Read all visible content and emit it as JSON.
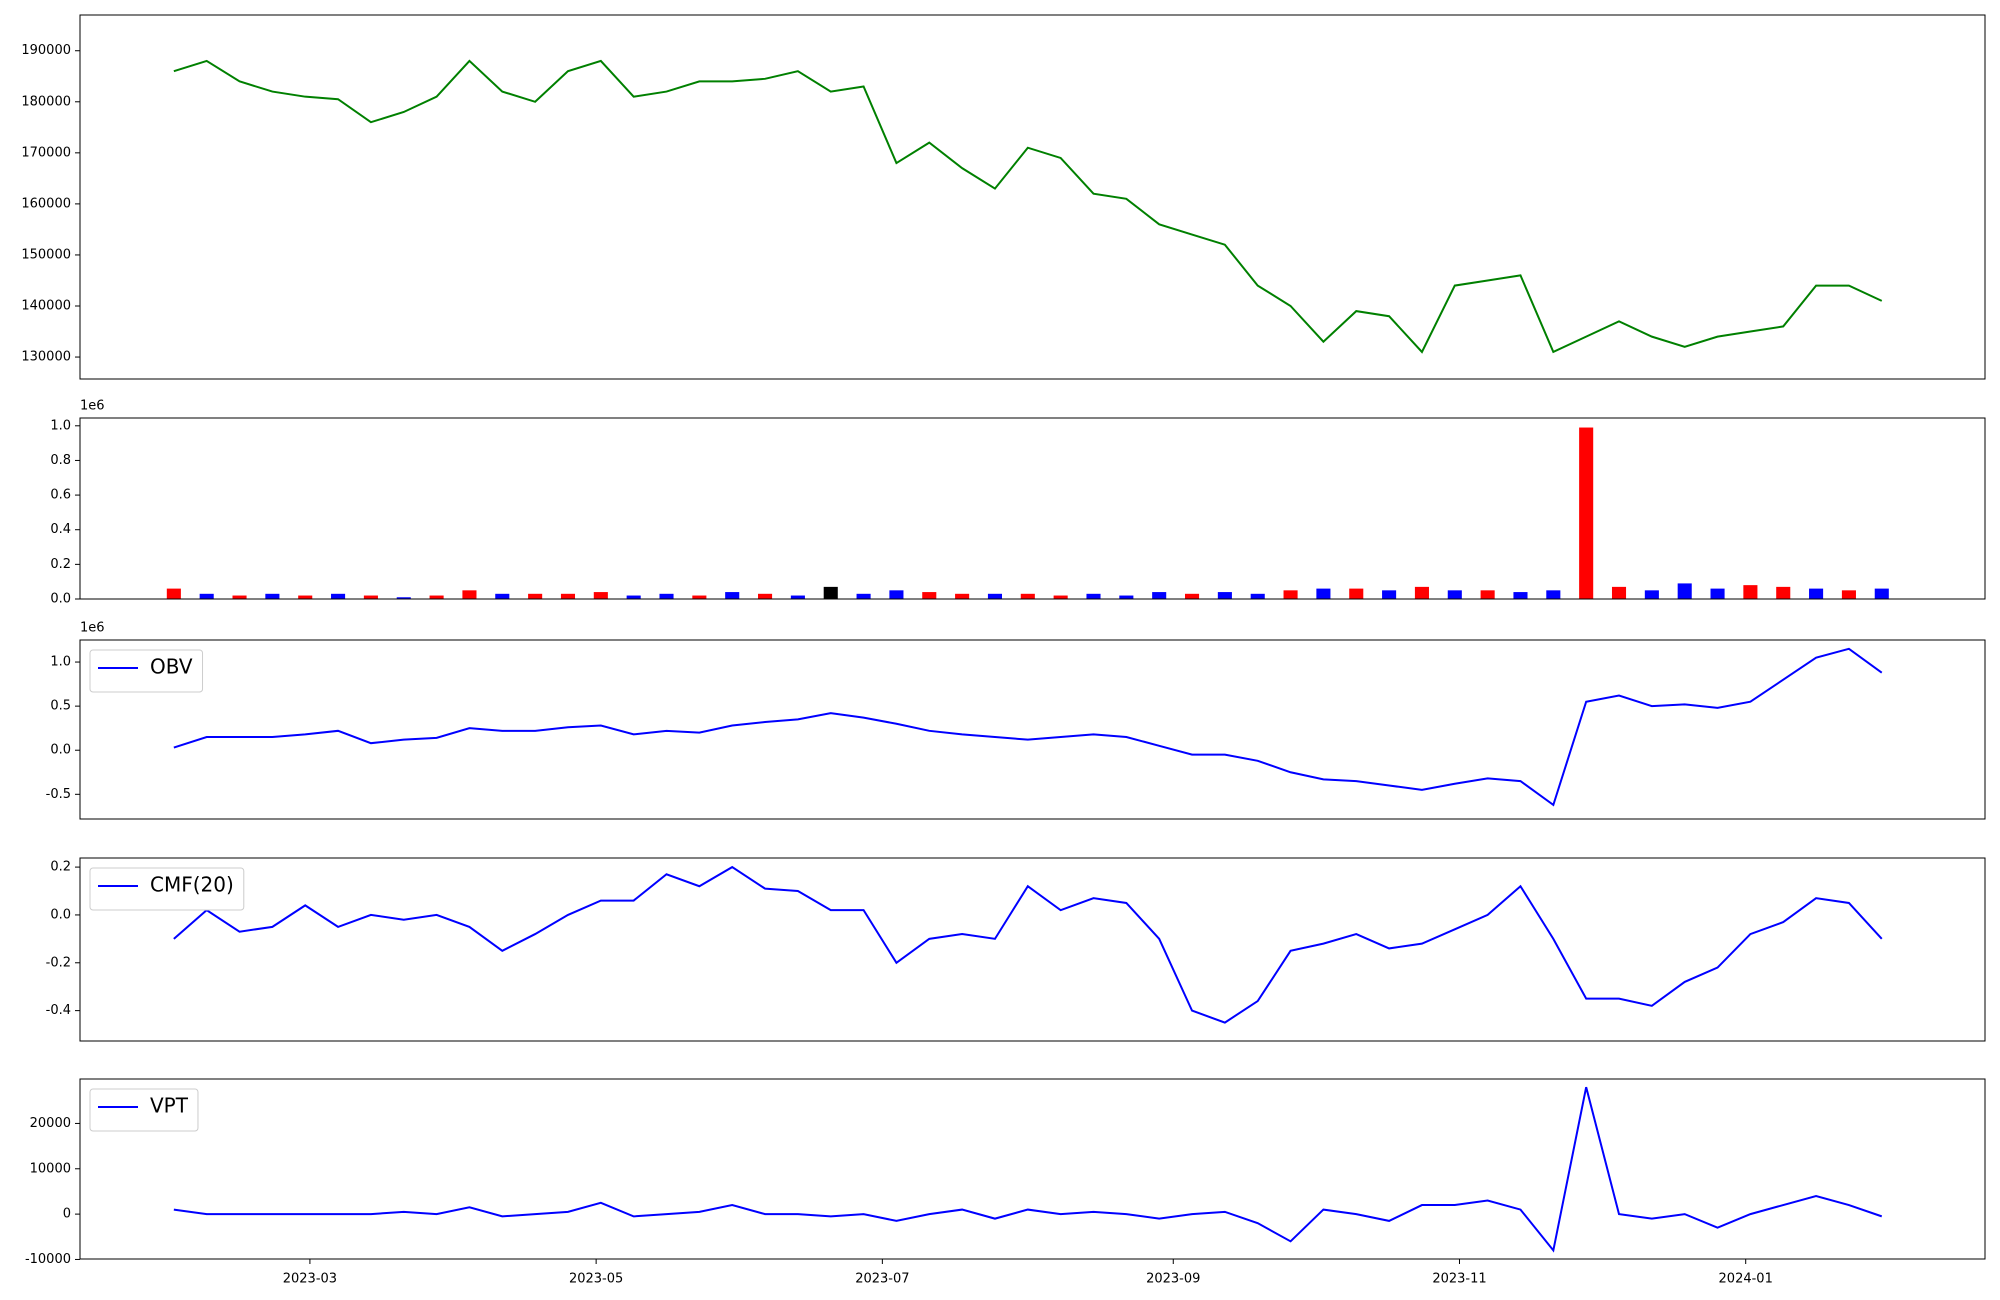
{
  "chart_data": [
    {
      "type": "line",
      "color": "#008000",
      "x": [
        19388,
        19395,
        19402,
        19409,
        19416,
        19423,
        19430,
        19437,
        19444,
        19451,
        19458,
        19465,
        19472,
        19479,
        19486,
        19493,
        19500,
        19507,
        19514,
        19521,
        19528,
        19535,
        19542,
        19549,
        19556,
        19563,
        19570,
        19577,
        19584,
        19591,
        19598,
        19605,
        19612,
        19619,
        19626,
        19633,
        19640,
        19647,
        19654,
        19661,
        19668,
        19675,
        19682,
        19689,
        19696,
        19703,
        19710,
        19717,
        19724,
        19731,
        19738,
        19745,
        19752
      ],
      "values": [
        186000,
        188000,
        184000,
        182000,
        181000,
        180500,
        176000,
        178000,
        181000,
        188000,
        182000,
        180000,
        186000,
        188000,
        181000,
        182000,
        184000,
        184000,
        184500,
        186000,
        182000,
        183000,
        168000,
        172000,
        167000,
        163000,
        171000,
        169000,
        162000,
        161000,
        156000,
        154000,
        152000,
        144000,
        140000,
        133000,
        139000,
        138000,
        131000,
        144000,
        145000,
        146000,
        131000,
        134000,
        137000,
        134000,
        132000,
        134000,
        135000,
        136000,
        144000,
        144000,
        141000
      ],
      "xlim": [
        19368,
        19774
      ],
      "ylim": [
        125700,
        197000
      ],
      "yticks": [
        130000,
        140000,
        150000,
        160000,
        170000,
        180000,
        190000
      ]
    },
    {
      "type": "bar",
      "offset_text": "1e6",
      "x": [
        19388,
        19395,
        19402,
        19409,
        19416,
        19423,
        19430,
        19437,
        19444,
        19451,
        19458,
        19465,
        19472,
        19479,
        19486,
        19493,
        19500,
        19507,
        19514,
        19521,
        19528,
        19535,
        19542,
        19549,
        19556,
        19563,
        19570,
        19577,
        19584,
        19591,
        19598,
        19605,
        19612,
        19619,
        19626,
        19633,
        19640,
        19647,
        19654,
        19661,
        19668,
        19675,
        19682,
        19689,
        19696,
        19703,
        19710,
        19717,
        19724,
        19731,
        19738,
        19745,
        19752
      ],
      "values": [
        0.06,
        0.03,
        0.02,
        0.03,
        0.02,
        0.03,
        0.02,
        0.01,
        0.02,
        0.05,
        0.03,
        0.03,
        0.03,
        0.04,
        0.02,
        0.03,
        0.02,
        0.04,
        0.03,
        0.02,
        0.07,
        0.03,
        0.05,
        0.04,
        0.03,
        0.03,
        0.03,
        0.02,
        0.03,
        0.02,
        0.04,
        0.03,
        0.04,
        0.03,
        0.05,
        0.06,
        0.06,
        0.05,
        0.07,
        0.05,
        0.05,
        0.04,
        0.05,
        0.99,
        0.07,
        0.05,
        0.09,
        0.06,
        0.08,
        0.07,
        0.06,
        0.05,
        0.06
      ],
      "colors": [
        "#ff0000",
        "#0000ff",
        "#ff0000",
        "#0000ff",
        "#ff0000",
        "#0000ff",
        "#ff0000",
        "#0000ff",
        "#ff0000",
        "#ff0000",
        "#0000ff",
        "#ff0000",
        "#ff0000",
        "#ff0000",
        "#0000ff",
        "#0000ff",
        "#ff0000",
        "#0000ff",
        "#ff0000",
        "#0000ff",
        "#000000",
        "#0000ff",
        "#0000ff",
        "#ff0000",
        "#ff0000",
        "#0000ff",
        "#ff0000",
        "#ff0000",
        "#0000ff",
        "#0000ff",
        "#0000ff",
        "#ff0000",
        "#0000ff",
        "#0000ff",
        "#ff0000",
        "#0000ff",
        "#ff0000",
        "#0000ff",
        "#ff0000",
        "#0000ff",
        "#ff0000",
        "#0000ff",
        "#0000ff",
        "#ff0000",
        "#ff0000",
        "#0000ff",
        "#0000ff",
        "#0000ff",
        "#ff0000",
        "#ff0000",
        "#0000ff",
        "#ff0000",
        "#0000ff"
      ],
      "xlim": [
        19368,
        19774
      ],
      "ylim": [
        0,
        1.045
      ],
      "yticks": [
        {
          "value": 0,
          "label": "0.0"
        },
        0.2,
        0.4,
        0.6,
        0.8,
        {
          "value": 1,
          "label": "1.0"
        }
      ]
    },
    {
      "type": "line",
      "offset_text": "1e6",
      "x": [
        19388,
        19395,
        19402,
        19409,
        19416,
        19423,
        19430,
        19437,
        19444,
        19451,
        19458,
        19465,
        19472,
        19479,
        19486,
        19493,
        19500,
        19507,
        19514,
        19521,
        19528,
        19535,
        19542,
        19549,
        19556,
        19563,
        19570,
        19577,
        19584,
        19591,
        19598,
        19605,
        19612,
        19619,
        19626,
        19633,
        19640,
        19647,
        19654,
        19661,
        19668,
        19675,
        19682,
        19689,
        19696,
        19703,
        19710,
        19717,
        19724,
        19731,
        19738,
        19745,
        19752
      ],
      "series": [
        {
          "name": "OBV",
          "color": "#0000ff",
          "values": [
            0.03,
            0.15,
            0.15,
            0.15,
            0.18,
            0.22,
            0.08,
            0.12,
            0.14,
            0.25,
            0.22,
            0.22,
            0.26,
            0.28,
            0.18,
            0.22,
            0.2,
            0.28,
            0.32,
            0.35,
            0.42,
            0.37,
            0.3,
            0.22,
            0.18,
            0.15,
            0.12,
            0.15,
            0.18,
            0.15,
            0.05,
            -0.05,
            -0.05,
            -0.12,
            -0.25,
            -0.33,
            -0.35,
            -0.4,
            -0.45,
            -0.38,
            -0.32,
            -0.35,
            -0.62,
            0.55,
            0.62,
            0.5,
            0.52,
            0.48,
            0.55,
            0.8,
            1.05,
            1.15,
            0.88
          ]
        }
      ],
      "xlim": [
        19368,
        19774
      ],
      "ylim": [
        -0.78,
        1.25
      ],
      "yticks": [
        -0.5,
        {
          "value": 0,
          "label": "0.0"
        },
        0.5,
        {
          "value": 1,
          "label": "1.0"
        }
      ]
    },
    {
      "type": "line",
      "x": [
        19388,
        19395,
        19402,
        19409,
        19416,
        19423,
        19430,
        19437,
        19444,
        19451,
        19458,
        19465,
        19472,
        19479,
        19486,
        19493,
        19500,
        19507,
        19514,
        19521,
        19528,
        19535,
        19542,
        19549,
        19556,
        19563,
        19570,
        19577,
        19584,
        19591,
        19598,
        19605,
        19612,
        19619,
        19626,
        19633,
        19640,
        19647,
        19654,
        19661,
        19668,
        19675,
        19682,
        19689,
        19696,
        19703,
        19710,
        19717,
        19724,
        19731,
        19738,
        19745,
        19752
      ],
      "series": [
        {
          "name": "CMF(20)",
          "color": "#0000ff",
          "values": [
            -0.1,
            0.02,
            -0.07,
            -0.05,
            0.04,
            -0.05,
            0,
            -0.02,
            0,
            -0.05,
            -0.15,
            -0.08,
            0,
            0.06,
            0.06,
            0.17,
            0.12,
            0.2,
            0.11,
            0.1,
            0.02,
            0.02,
            -0.2,
            -0.1,
            -0.08,
            -0.1,
            0.12,
            0.02,
            0.07,
            0.05,
            -0.1,
            -0.4,
            -0.45,
            -0.36,
            -0.15,
            -0.12,
            -0.08,
            -0.14,
            -0.12,
            -0.06,
            0,
            0.12,
            -0.1,
            -0.35,
            -0.35,
            -0.38,
            -0.28,
            -0.22,
            -0.08,
            -0.03,
            0.07,
            0.05,
            -0.1
          ]
        }
      ],
      "xlim": [
        19368,
        19774
      ],
      "ylim": [
        -0.527,
        0.238
      ],
      "yticks": [
        -0.4,
        -0.2,
        {
          "value": 0,
          "label": "0.0"
        },
        0.2
      ]
    },
    {
      "type": "line",
      "x": [
        19388,
        19395,
        19402,
        19409,
        19416,
        19423,
        19430,
        19437,
        19444,
        19451,
        19458,
        19465,
        19472,
        19479,
        19486,
        19493,
        19500,
        19507,
        19514,
        19521,
        19528,
        19535,
        19542,
        19549,
        19556,
        19563,
        19570,
        19577,
        19584,
        19591,
        19598,
        19605,
        19612,
        19619,
        19626,
        19633,
        19640,
        19647,
        19654,
        19661,
        19668,
        19675,
        19682,
        19689,
        19696,
        19703,
        19710,
        19717,
        19724,
        19731,
        19738,
        19745,
        19752
      ],
      "series": [
        {
          "name": "VPT",
          "color": "#0000ff",
          "values": [
            1000,
            0,
            0,
            0,
            0,
            0,
            0,
            500,
            0,
            1500,
            -500,
            0,
            500,
            2500,
            -500,
            0,
            500,
            2000,
            0,
            0,
            -500,
            0,
            -1500,
            0,
            1000,
            -1000,
            1000,
            0,
            500,
            0,
            -1000,
            0,
            500,
            -2000,
            -6000,
            1000,
            0,
            -1500,
            2000,
            2000,
            3000,
            1000,
            -8000,
            28000,
            0,
            -1000,
            0,
            -3000,
            0,
            2000,
            4000,
            2000,
            -500
          ]
        }
      ],
      "xlim": [
        19368,
        19774
      ],
      "ylim": [
        -9900,
        29800
      ],
      "yticks": [
        -10000,
        0,
        10000,
        20000
      ],
      "xticks": [
        {
          "value": 19417,
          "label": "2023-03"
        },
        {
          "value": 19478,
          "label": "2023-05"
        },
        {
          "value": 19539,
          "label": "2023-07"
        },
        {
          "value": 19601,
          "label": "2023-09"
        },
        {
          "value": 19662,
          "label": "2023-11"
        },
        {
          "value": 19723,
          "label": "2024-01"
        }
      ]
    }
  ]
}
